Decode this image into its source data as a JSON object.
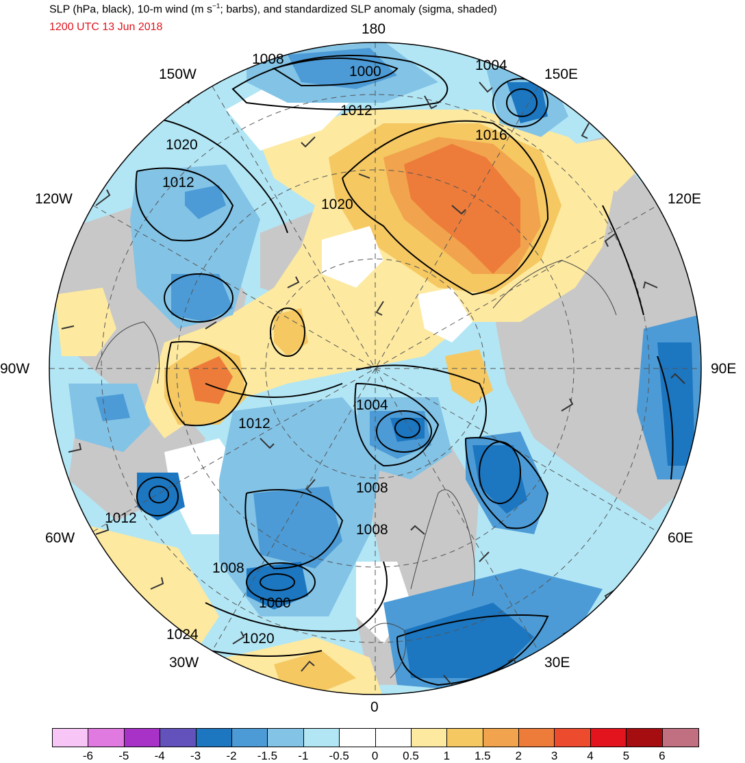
{
  "header": {
    "title": "SLP (hPa, black), 10-m wind (m s",
    "title_sup": "−1",
    "title_rest": "; barbs), and standardized SLP anomaly (sigma, shaded)",
    "valid_time": "1200 UTC 13 Jun 2018"
  },
  "longitude_labels": {
    "lon_180": "180",
    "lon_150w": "150W",
    "lon_150e": "150E",
    "lon_120w": "120W",
    "lon_120e": "120E",
    "lon_90w": "90W",
    "lon_90e": "90E",
    "lon_60w": "60W",
    "lon_60e": "60E",
    "lon_30w": "30W",
    "lon_30e": "30E",
    "lon_0": "0"
  },
  "isobar_labels": {
    "p1008_top": "1008",
    "p1000_top": "1000",
    "p1004_top": "1004",
    "p1012_top": "1012",
    "p1016_top": "1016",
    "p1020_left": "1020",
    "p1012_left": "1012",
    "p1020_center": "1020",
    "p1012_mid": "1012",
    "p1004_mid": "1004",
    "p1008_mid": "1008",
    "p1008_mid2": "1008",
    "p1012_lower": "1012",
    "p1008_lower": "1008",
    "p1000_lower": "1000",
    "p1024_bottom": "1024",
    "p1020_bottom": "1020"
  },
  "legend": {
    "colors": [
      "#f7c6f7",
      "#e07ae0",
      "#a832c8",
      "#6452bc",
      "#1c76c0",
      "#4c9bd6",
      "#83c3e6",
      "#b2e6f5",
      "#ffffff",
      "#ffffff",
      "#fde9a0",
      "#f5c862",
      "#f1a34d",
      "#ed7c3a",
      "#ec4b2e",
      "#e3141d",
      "#a50d10",
      "#c07080"
    ],
    "ticks": [
      "-6",
      "-5",
      "-4",
      "-3",
      "-2",
      "-1.5",
      "-1",
      "-0.5",
      "0",
      "0.5",
      "1",
      "1.5",
      "2",
      "3",
      "4",
      "5",
      "6"
    ]
  },
  "map": {
    "projection": "north-polar-stereographic",
    "land_color": "#c8c8c8",
    "ocean_color": "#ffffff"
  }
}
